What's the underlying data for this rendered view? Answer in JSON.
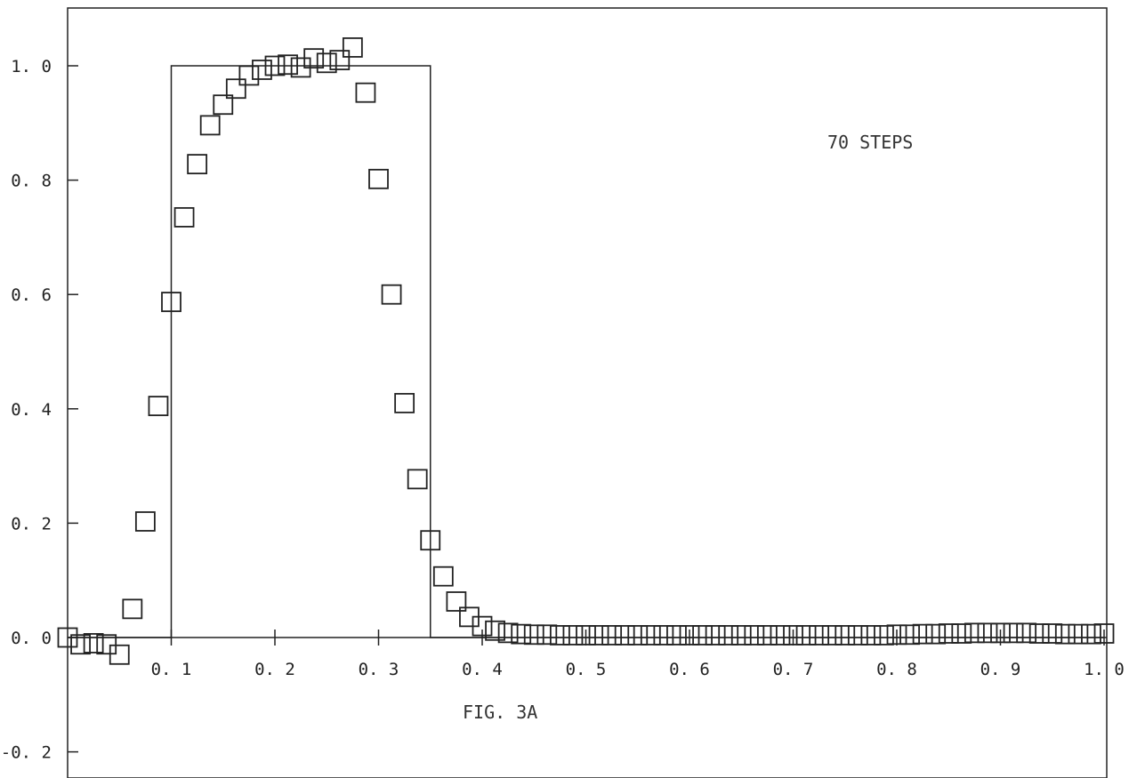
{
  "chart_data": {
    "type": "scatter",
    "title": "",
    "xlabel": "",
    "ylabel": "",
    "xlim": [
      -0.0,
      1.0
    ],
    "ylim": [
      -0.2,
      1.1
    ],
    "grid": false,
    "x_ticks": [
      {
        "value": 0.1,
        "label": "0. 1"
      },
      {
        "value": 0.2,
        "label": "0. 2"
      },
      {
        "value": 0.3,
        "label": "0. 3"
      },
      {
        "value": 0.4,
        "label": "0. 4"
      },
      {
        "value": 0.5,
        "label": "0. 5"
      },
      {
        "value": 0.6,
        "label": "0. 6"
      },
      {
        "value": 0.7,
        "label": "0. 7"
      },
      {
        "value": 0.8,
        "label": "0. 8"
      },
      {
        "value": 0.9,
        "label": "0. 9"
      },
      {
        "value": 1.0,
        "label": "1. 0"
      }
    ],
    "y_ticks": [
      {
        "value": 1.0,
        "label": "1. 0"
      },
      {
        "value": 0.8,
        "label": "0. 8"
      },
      {
        "value": 0.6,
        "label": "0. 6"
      },
      {
        "value": 0.4,
        "label": "0. 4"
      },
      {
        "value": 0.2,
        "label": "0. 2"
      },
      {
        "value": 0.0,
        "label": "0. 0"
      },
      {
        "value": -0.2,
        "label": "-0. 2"
      }
    ],
    "annotations": {
      "steps": "70 STEPS",
      "figure": "FIG. 3A"
    },
    "series": [
      {
        "style": "line",
        "x": [
          0.0,
          0.1,
          0.1,
          0.35,
          0.35,
          1.0
        ],
        "y": [
          0.0,
          0.0,
          1.0,
          1.0,
          0.0,
          0.0
        ]
      },
      {
        "style": "square-markers",
        "x": [
          0.0,
          0.0125,
          0.025,
          0.0375,
          0.05,
          0.0625,
          0.075,
          0.0875,
          0.1,
          0.1125,
          0.125,
          0.1375,
          0.15,
          0.1625,
          0.175,
          0.1875,
          0.2,
          0.2125,
          0.225,
          0.2375,
          0.25,
          0.2625,
          0.275,
          0.2875,
          0.3,
          0.3125,
          0.325,
          0.3375,
          0.35,
          0.3625,
          0.375,
          0.3875,
          0.4,
          0.4125,
          0.425,
          0.4375,
          0.45,
          0.4625,
          0.475,
          0.4875,
          0.5,
          0.5125,
          0.525,
          0.5375,
          0.55,
          0.5625,
          0.575,
          0.5875,
          0.6,
          0.6125,
          0.625,
          0.6375,
          0.65,
          0.6625,
          0.675,
          0.6875,
          0.7,
          0.7125,
          0.725,
          0.7375,
          0.75,
          0.7625,
          0.775,
          0.7875,
          0.8,
          0.8125,
          0.825,
          0.8375,
          0.85,
          0.8625,
          0.875,
          0.8875,
          0.9,
          0.9125,
          0.925,
          0.9375,
          0.95,
          0.9625,
          0.975,
          0.9875,
          1.0
        ],
        "y": [
          0.0,
          -0.012,
          -0.01,
          -0.012,
          -0.03,
          0.05,
          0.203,
          0.405,
          0.587,
          0.735,
          0.828,
          0.896,
          0.932,
          0.96,
          0.983,
          0.993,
          1.0,
          1.002,
          0.997,
          1.013,
          1.005,
          1.01,
          1.032,
          0.953,
          0.802,
          0.6,
          0.41,
          0.277,
          0.17,
          0.107,
          0.063,
          0.036,
          0.02,
          0.012,
          0.008,
          0.006,
          0.005,
          0.005,
          0.004,
          0.004,
          0.004,
          0.004,
          0.004,
          0.004,
          0.004,
          0.004,
          0.004,
          0.004,
          0.004,
          0.004,
          0.004,
          0.004,
          0.004,
          0.004,
          0.004,
          0.004,
          0.004,
          0.004,
          0.004,
          0.004,
          0.004,
          0.004,
          0.004,
          0.004,
          0.005,
          0.005,
          0.006,
          0.006,
          0.007,
          0.007,
          0.008,
          0.008,
          0.008,
          0.008,
          0.008,
          0.007,
          0.007,
          0.006,
          0.006,
          0.006,
          0.007
        ]
      }
    ]
  }
}
